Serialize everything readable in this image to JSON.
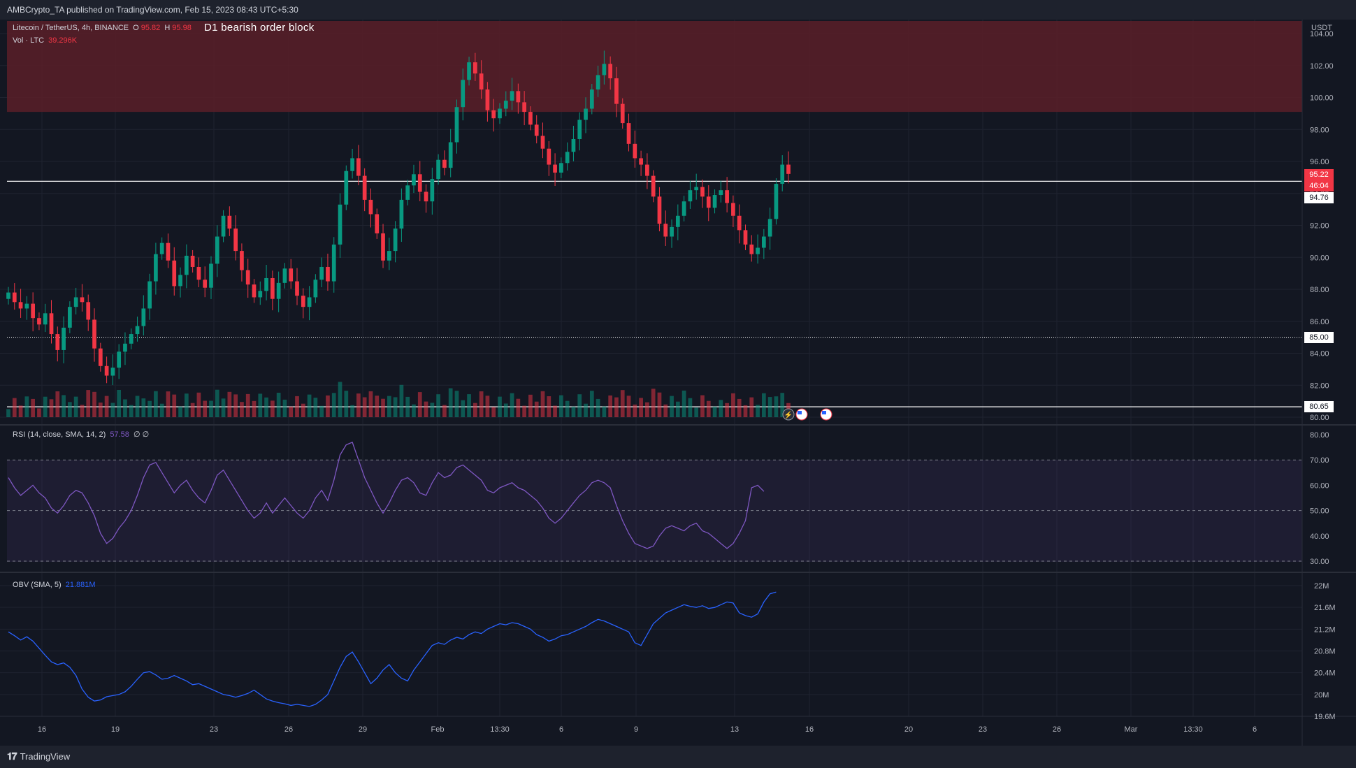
{
  "header": {
    "published": "AMBCrypto_TA published on TradingView.com, Feb 15, 2023 08:43 UTC+5:30"
  },
  "footer": {
    "brand": "TradingView"
  },
  "legend": {
    "symbol": "Litecoin / TetherUS, 4h, BINANCE",
    "o_label": "O",
    "o_value": "95.82",
    "h_label": "H",
    "h_value": "95.98",
    "vol_label": "Vol · LTC",
    "vol_value": "39.296K",
    "rsi_label": "RSI (14, close, SMA, 14, 2)",
    "rsi_value": "57.58",
    "rsi_extra": "∅ ∅",
    "obv_label": "OBV (SMA, 5)",
    "obv_value": "21.881M"
  },
  "annotation": {
    "order_block": "D1 bearish order block"
  },
  "price_axis": {
    "currency": "USDT",
    "ticks": [
      "104.00",
      "102.00",
      "100.00",
      "98.00",
      "96.00",
      "94.00",
      "92.00",
      "90.00",
      "88.00",
      "86.00",
      "84.00",
      "82.00",
      "80.00"
    ],
    "tags": {
      "current_price": "95.22",
      "countdown": "46:04",
      "level_high": "94.76",
      "level_mid": "85.00",
      "level_low": "80.65"
    }
  },
  "rsi_axis": {
    "ticks": [
      "80.00",
      "70.00",
      "60.00",
      "50.00",
      "40.00",
      "30.00"
    ]
  },
  "obv_axis": {
    "ticks": [
      "22M",
      "21.6M",
      "21.2M",
      "20.8M",
      "20.4M",
      "20M",
      "19.6M"
    ]
  },
  "time_axis": {
    "ticks": [
      "16",
      "19",
      "23",
      "26",
      "29",
      "Feb",
      "13:30",
      "6",
      "9",
      "13",
      "16",
      "20",
      "23",
      "26",
      "Mar",
      "13:30",
      "6"
    ]
  },
  "colors": {
    "bull": "#089981",
    "bear": "#f23645",
    "rsi": "#7e57c2",
    "obv": "#2962ff",
    "order_block": "#5a1e28",
    "background": "#131722"
  },
  "chart_data": {
    "type": "candlestick",
    "symbol": "Litecoin / TetherUS",
    "timeframe": "4h",
    "exchange": "BINANCE",
    "price_range": [
      79.5,
      104.8
    ],
    "order_block_zone": [
      99.1,
      104.8
    ],
    "horizontal_levels": [
      94.76,
      85.0,
      80.65
    ],
    "current_price": 95.22,
    "price_path": [
      87.8,
      87.2,
      86.8,
      87.1,
      86.2,
      85.8,
      86.5,
      85.2,
      84.2,
      85.6,
      86.9,
      87.5,
      87.2,
      86.1,
      84.3,
      83.2,
      82.6,
      83.1,
      84.1,
      84.6,
      85.2,
      85.7,
      86.8,
      88.5,
      90.2,
      90.9,
      89.8,
      88.2,
      88.9,
      90.1,
      89.4,
      88.6,
      88.1,
      89.6,
      91.3,
      92.6,
      91.8,
      90.4,
      89.2,
      88.3,
      87.5,
      87.9,
      88.7,
      87.4,
      88.4,
      89.3,
      88.5,
      87.6,
      86.9,
      87.5,
      88.6,
      89.4,
      88.5,
      90.8,
      93.3,
      95.4,
      96.2,
      95.1,
      93.6,
      92.7,
      91.5,
      89.8,
      90.4,
      91.8,
      93.6,
      94.5,
      95.2,
      94.1,
      93.5,
      94.9,
      96.1,
      95.6,
      97.2,
      99.4,
      101.1,
      102.2,
      101.5,
      100.5,
      99.2,
      98.7,
      99.3,
      99.8,
      100.4,
      99.7,
      99.1,
      98.3,
      97.6,
      96.8,
      95.8,
      95.3,
      95.9,
      96.6,
      97.4,
      98.6,
      99.3,
      100.5,
      101.4,
      102.1,
      101.2,
      99.6,
      98.4,
      97.1,
      96.2,
      95.8,
      95.1,
      93.8,
      92.1,
      91.3,
      91.9,
      92.6,
      93.5,
      94.2,
      94.4,
      93.8,
      93.1,
      93.9,
      94.2,
      93.4,
      92.6,
      91.7,
      90.8,
      90.2,
      90.6,
      91.3,
      92.4,
      94.6,
      95.8,
      95.22
    ],
    "rsi_range": [
      27,
      80
    ],
    "rsi": [
      63,
      59,
      56,
      58,
      60,
      57,
      55,
      51,
      49,
      52,
      56,
      58,
      57,
      53,
      48,
      41,
      37,
      39,
      43,
      46,
      50,
      56,
      63,
      68,
      69,
      65,
      61,
      57,
      60,
      62,
      58,
      55,
      53,
      58,
      64,
      66,
      62,
      58,
      54,
      50,
      47,
      49,
      53,
      49,
      52,
      55,
      52,
      49,
      47,
      50,
      55,
      58,
      54,
      62,
      72,
      76,
      77,
      70,
      63,
      58,
      53,
      49,
      53,
      58,
      62,
      63,
      61,
      57,
      56,
      61,
      65,
      63,
      64,
      67,
      68,
      66,
      64,
      62,
      58,
      57,
      59,
      60,
      61,
      59,
      58,
      56,
      54,
      51,
      47,
      45,
      47,
      50,
      53,
      56,
      58,
      61,
      62,
      61,
      59,
      52,
      46,
      41,
      37,
      36,
      35,
      36,
      40,
      43,
      44,
      43,
      42,
      44,
      45,
      42,
      41,
      39,
      37,
      35,
      37,
      41,
      46,
      59,
      60,
      57.58
    ],
    "obv_range": [
      19.5,
      22.1
    ],
    "obv": [
      21.15,
      21.08,
      21.0,
      21.06,
      20.98,
      20.85,
      20.72,
      20.6,
      20.55,
      20.58,
      20.5,
      20.35,
      20.1,
      19.95,
      19.88,
      19.9,
      19.96,
      19.98,
      20.0,
      20.05,
      20.15,
      20.28,
      20.4,
      20.42,
      20.36,
      20.28,
      20.3,
      20.35,
      20.3,
      20.25,
      20.18,
      20.2,
      20.15,
      20.1,
      20.05,
      20.0,
      19.98,
      19.95,
      19.98,
      20.02,
      20.08,
      20.0,
      19.92,
      19.88,
      19.85,
      19.83,
      19.8,
      19.82,
      19.8,
      19.78,
      19.82,
      19.9,
      20.0,
      20.25,
      20.5,
      20.7,
      20.78,
      20.6,
      20.4,
      20.2,
      20.3,
      20.45,
      20.55,
      20.4,
      20.3,
      20.25,
      20.45,
      20.6,
      20.75,
      20.9,
      20.95,
      20.92,
      21.0,
      21.05,
      21.02,
      21.1,
      21.15,
      21.12,
      21.2,
      21.25,
      21.3,
      21.28,
      21.32,
      21.3,
      21.25,
      21.2,
      21.1,
      21.05,
      20.98,
      21.02,
      21.08,
      21.1,
      21.15,
      21.2,
      21.25,
      21.32,
      21.38,
      21.35,
      21.3,
      21.25,
      21.2,
      21.15,
      20.95,
      20.9,
      21.1,
      21.3,
      21.4,
      21.5,
      21.55,
      21.6,
      21.65,
      21.62,
      21.6,
      21.63,
      21.58,
      21.6,
      21.65,
      21.7,
      21.68,
      21.5,
      21.45,
      21.42,
      21.48,
      21.7,
      21.85,
      21.881
    ]
  }
}
